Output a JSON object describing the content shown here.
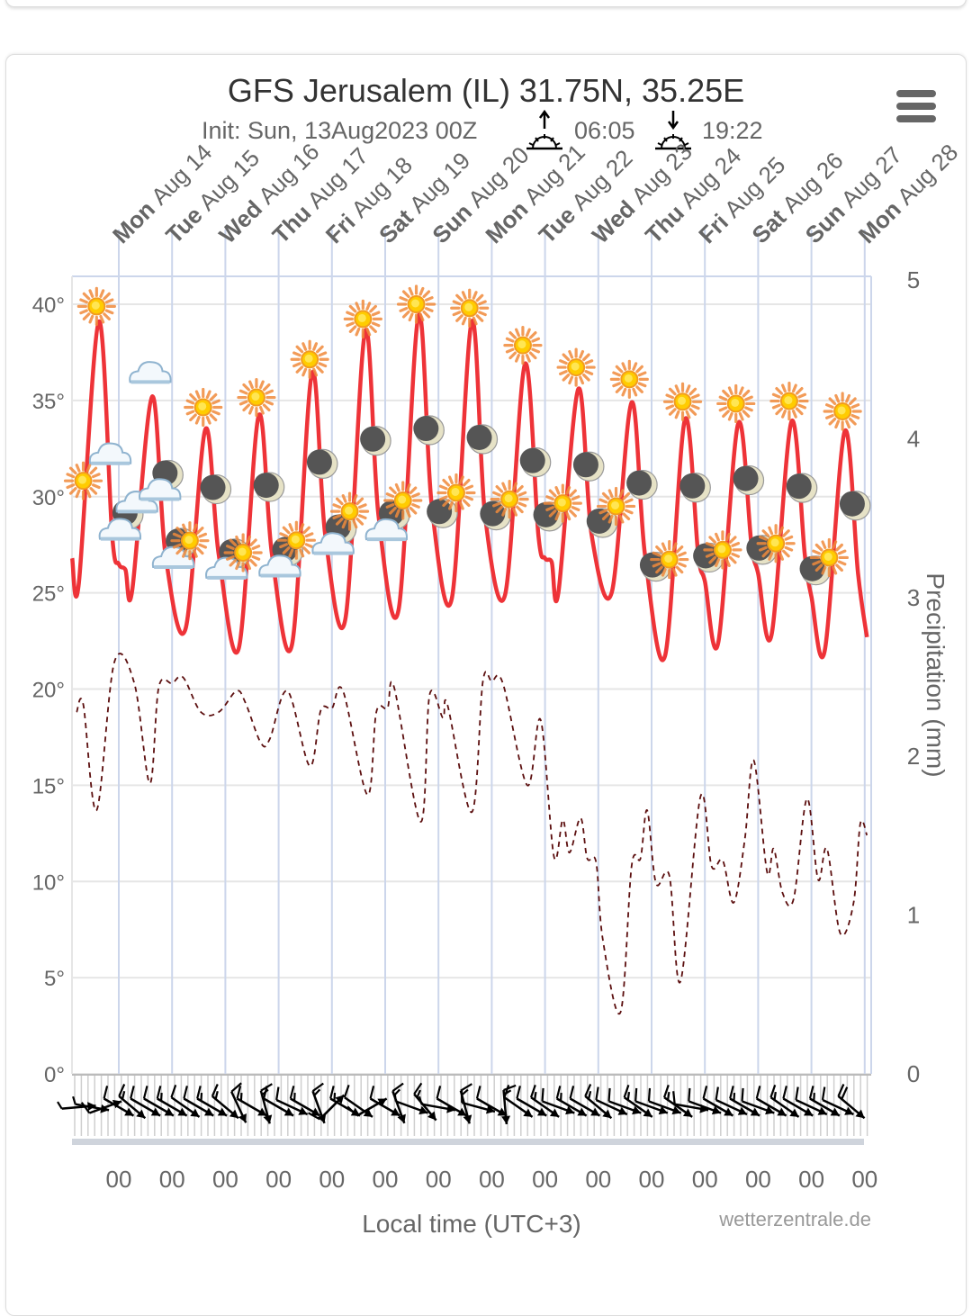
{
  "header": {
    "title": "GFS Jerusalem (IL) 31.75N, 35.25E",
    "init": "Init: Sun, 13Aug2023 00Z",
    "sunrise": "06:05",
    "sunset": "19:22",
    "sunrise_icon": "sunrise-icon",
    "sunset_icon": "sunset-icon",
    "menu_icon": "hamburger-menu-icon"
  },
  "chart_data": {
    "type": "line",
    "title": "GFS Jerusalem (IL) 31.75N, 35.25E",
    "subtitle": "Init: Sun, 13Aug2023 00Z",
    "x_axis": {
      "label": "Local time (UTC+3)",
      "range": [
        "2023-08-13 03:00",
        "2023-08-28 03:00"
      ],
      "tick_times": [
        "2023-08-14 00:00",
        "2023-08-15 00:00",
        "2023-08-16 00:00",
        "2023-08-17 00:00",
        "2023-08-18 00:00",
        "2023-08-19 00:00",
        "2023-08-20 00:00",
        "2023-08-21 00:00",
        "2023-08-22 00:00",
        "2023-08-23 00:00",
        "2023-08-24 00:00",
        "2023-08-25 00:00",
        "2023-08-26 00:00",
        "2023-08-27 00:00",
        "2023-08-28 00:00"
      ],
      "tick_labels": [
        "00",
        "00",
        "00",
        "00",
        "00",
        "00",
        "00",
        "00",
        "00",
        "00",
        "00",
        "00",
        "00",
        "00",
        "00"
      ],
      "day_labels": [
        {
          "day": "Mon",
          "date": "Aug 14"
        },
        {
          "day": "Tue",
          "date": "Aug 15"
        },
        {
          "day": "Wed",
          "date": "Aug 16"
        },
        {
          "day": "Thu",
          "date": "Aug 17"
        },
        {
          "day": "Fri",
          "date": "Aug 18"
        },
        {
          "day": "Sat",
          "date": "Aug 19"
        },
        {
          "day": "Sun",
          "date": "Aug 20"
        },
        {
          "day": "Mon",
          "date": "Aug 21"
        },
        {
          "day": "Tue",
          "date": "Aug 22"
        },
        {
          "day": "Wed",
          "date": "Aug 23"
        },
        {
          "day": "Thu",
          "date": "Aug 24"
        },
        {
          "day": "Fri",
          "date": "Aug 25"
        },
        {
          "day": "Sat",
          "date": "Aug 26"
        },
        {
          "day": "Sun",
          "date": "Aug 27"
        },
        {
          "day": "Mon",
          "date": "Aug 28"
        }
      ]
    },
    "y_axis_left": {
      "ticks": [
        0,
        5,
        10,
        15,
        20,
        25,
        30,
        35,
        40
      ],
      "unit": "°",
      "range": [
        0,
        41.45
      ],
      "grid": true
    },
    "y_axis_right": {
      "label": "Precipitation (mm)",
      "ticks": [
        0,
        1,
        2,
        3,
        4,
        5
      ],
      "range": [
        0,
        5
      ]
    },
    "colors": {
      "temperature": "#ee3338",
      "dewpoint": "#5c0f0f",
      "grid": "#e6e6e6",
      "day_lines": "#ccd6eb",
      "wind": "#000000"
    },
    "series": [
      {
        "style": "solid",
        "color": "#ee3338",
        "points": [
          [
            "2023-08-13 03:00",
            26.8
          ],
          [
            "2023-08-13 06:00",
            25.5
          ],
          [
            "2023-08-13 15:00",
            39.1
          ],
          [
            "2023-08-13 21:00",
            28.0
          ],
          [
            "2023-08-14 00:00",
            26.5
          ],
          [
            "2023-08-14 03:00",
            26.2
          ],
          [
            "2023-08-14 06:00",
            25.1
          ],
          [
            "2023-08-14 15:00",
            35.2
          ],
          [
            "2023-08-14 21:00",
            27.0
          ],
          [
            "2023-08-15 06:00",
            23.1
          ],
          [
            "2023-08-15 15:00",
            33.5
          ],
          [
            "2023-08-15 21:00",
            27.0
          ],
          [
            "2023-08-16 06:00",
            22.1
          ],
          [
            "2023-08-16 15:00",
            34.2
          ],
          [
            "2023-08-16 21:00",
            27.0
          ],
          [
            "2023-08-17 06:00",
            22.3
          ],
          [
            "2023-08-17 15:00",
            36.4
          ],
          [
            "2023-08-17 21:00",
            28.0
          ],
          [
            "2023-08-18 06:00",
            23.6
          ],
          [
            "2023-08-18 15:00",
            38.6
          ],
          [
            "2023-08-18 21:00",
            29.0
          ],
          [
            "2023-08-19 06:00",
            24.1
          ],
          [
            "2023-08-19 15:00",
            39.4
          ],
          [
            "2023-08-19 21:00",
            29.5
          ],
          [
            "2023-08-20 06:00",
            24.7
          ],
          [
            "2023-08-20 15:00",
            39.1
          ],
          [
            "2023-08-20 21:00",
            29.0
          ],
          [
            "2023-08-21 06:00",
            24.9
          ],
          [
            "2023-08-21 15:00",
            36.9
          ],
          [
            "2023-08-21 21:00",
            28.0
          ],
          [
            "2023-08-22 00:00",
            26.8
          ],
          [
            "2023-08-22 03:00",
            26.6
          ],
          [
            "2023-08-22 06:00",
            25.0
          ],
          [
            "2023-08-22 15:00",
            35.6
          ],
          [
            "2023-08-22 21:00",
            28.0
          ],
          [
            "2023-08-23 06:00",
            25.0
          ],
          [
            "2023-08-23 15:00",
            34.9
          ],
          [
            "2023-08-23 21:00",
            27.0
          ],
          [
            "2023-08-24 06:00",
            21.7
          ],
          [
            "2023-08-24 15:00",
            34.0
          ],
          [
            "2023-08-24 21:00",
            27.0
          ],
          [
            "2023-08-25 00:00",
            25.6
          ],
          [
            "2023-08-25 06:00",
            22.4
          ],
          [
            "2023-08-25 15:00",
            33.8
          ],
          [
            "2023-08-25 21:00",
            27.5
          ],
          [
            "2023-08-26 00:00",
            26.0
          ],
          [
            "2023-08-26 06:00",
            22.8
          ],
          [
            "2023-08-26 15:00",
            33.9
          ],
          [
            "2023-08-26 21:00",
            27.0
          ],
          [
            "2023-08-27 00:00",
            24.8
          ],
          [
            "2023-08-27 06:00",
            22.0
          ],
          [
            "2023-08-27 15:00",
            33.4
          ],
          [
            "2023-08-27 21:00",
            26.0
          ],
          [
            "2023-08-28 01:00",
            22.7
          ]
        ]
      },
      {
        "style": "dashed",
        "color": "#5c0f0f",
        "points": [
          [
            "2023-08-13 05:00",
            18.8
          ],
          [
            "2023-08-13 08:00",
            19.2
          ],
          [
            "2023-08-13 14:00",
            13.7
          ],
          [
            "2023-08-13 22:00",
            21.4
          ],
          [
            "2023-08-14 07:00",
            20.3
          ],
          [
            "2023-08-14 14:00",
            15.1
          ],
          [
            "2023-08-14 18:00",
            20.1
          ],
          [
            "2023-08-15 00:00",
            20.3
          ],
          [
            "2023-08-15 05:00",
            20.6
          ],
          [
            "2023-08-15 13:00",
            18.8
          ],
          [
            "2023-08-15 21:00",
            18.8
          ],
          [
            "2023-08-16 05:00",
            19.9
          ],
          [
            "2023-08-16 09:00",
            19.3
          ],
          [
            "2023-08-16 16:00",
            17.2
          ],
          [
            "2023-08-16 20:00",
            17.4
          ],
          [
            "2023-08-17 04:00",
            19.9
          ],
          [
            "2023-08-17 14:00",
            16.0
          ],
          [
            "2023-08-17 19:00",
            18.9
          ],
          [
            "2023-08-18 00:00",
            19.0
          ],
          [
            "2023-08-18 05:00",
            19.9
          ],
          [
            "2023-08-18 16:00",
            14.5
          ],
          [
            "2023-08-18 20:00",
            18.8
          ],
          [
            "2023-08-19 01:00",
            19.0
          ],
          [
            "2023-08-19 04:00",
            20.1
          ],
          [
            "2023-08-19 16:00",
            13.1
          ],
          [
            "2023-08-19 20:00",
            19.7
          ],
          [
            "2023-08-20 02:00",
            18.5
          ],
          [
            "2023-08-20 04:00",
            19.2
          ],
          [
            "2023-08-20 15:00",
            13.6
          ],
          [
            "2023-08-20 20:00",
            20.4
          ],
          [
            "2023-08-21 00:00",
            20.4
          ],
          [
            "2023-08-21 05:00",
            20.3
          ],
          [
            "2023-08-21 16:00",
            15.0
          ],
          [
            "2023-08-21 22:00",
            18.4
          ],
          [
            "2023-08-22 04:00",
            11.3
          ],
          [
            "2023-08-22 08:00",
            13.2
          ],
          [
            "2023-08-22 11:00",
            11.5
          ],
          [
            "2023-08-22 16:00",
            13.3
          ],
          [
            "2023-08-22 19:00",
            11.2
          ],
          [
            "2023-08-22 23:00",
            11.0
          ],
          [
            "2023-08-23 02:00",
            7.0
          ],
          [
            "2023-08-23 10:00",
            3.2
          ],
          [
            "2023-08-23 15:00",
            10.8
          ],
          [
            "2023-08-23 19:00",
            11.2
          ],
          [
            "2023-08-23 22:00",
            13.7
          ],
          [
            "2023-08-24 02:00",
            9.9
          ],
          [
            "2023-08-24 08:00",
            10.3
          ],
          [
            "2023-08-24 13:00",
            4.8
          ],
          [
            "2023-08-24 22:00",
            14.4
          ],
          [
            "2023-08-25 03:00",
            10.8
          ],
          [
            "2023-08-25 08:00",
            11.1
          ],
          [
            "2023-08-25 13:00",
            8.9
          ],
          [
            "2023-08-25 18:00",
            12.2
          ],
          [
            "2023-08-25 22:00",
            16.3
          ],
          [
            "2023-08-26 04:00",
            10.5
          ],
          [
            "2023-08-26 07:00",
            11.7
          ],
          [
            "2023-08-26 11:00",
            9.4
          ],
          [
            "2023-08-26 16:00",
            9.1
          ],
          [
            "2023-08-26 22:00",
            14.3
          ],
          [
            "2023-08-27 03:00",
            10.1
          ],
          [
            "2023-08-27 07:00",
            11.7
          ],
          [
            "2023-08-27 13:00",
            7.3
          ],
          [
            "2023-08-27 19:00",
            8.9
          ],
          [
            "2023-08-27 22:00",
            13.0
          ],
          [
            "2023-08-28 01:00",
            12.4
          ]
        ]
      }
    ],
    "precipitation": [],
    "weather_icons": [
      [
        "2023-08-13 08:00",
        "sun"
      ],
      [
        "2023-08-13 14:00",
        "sun"
      ],
      [
        "2023-08-13 20:00",
        "cloud"
      ],
      [
        "2023-08-14 02:00",
        "moon-cloud"
      ],
      [
        "2023-08-14 08:00",
        "cloud"
      ],
      [
        "2023-08-14 14:00",
        "cloud"
      ],
      [
        "2023-08-14 20:00",
        "moon-cloud"
      ],
      [
        "2023-08-15 02:00",
        "moon-cloud"
      ],
      [
        "2023-08-15 08:00",
        "sun"
      ],
      [
        "2023-08-15 14:00",
        "sun"
      ],
      [
        "2023-08-15 20:00",
        "moon"
      ],
      [
        "2023-08-16 02:00",
        "moon-cloud"
      ],
      [
        "2023-08-16 08:00",
        "sun"
      ],
      [
        "2023-08-16 14:00",
        "sun"
      ],
      [
        "2023-08-16 20:00",
        "moon"
      ],
      [
        "2023-08-17 02:00",
        "moon-cloud"
      ],
      [
        "2023-08-17 08:00",
        "sun"
      ],
      [
        "2023-08-17 14:00",
        "sun"
      ],
      [
        "2023-08-17 20:00",
        "moon"
      ],
      [
        "2023-08-18 02:00",
        "moon-cloud"
      ],
      [
        "2023-08-18 08:00",
        "sun"
      ],
      [
        "2023-08-18 14:00",
        "sun"
      ],
      [
        "2023-08-18 20:00",
        "moon"
      ],
      [
        "2023-08-19 02:00",
        "moon-cloud"
      ],
      [
        "2023-08-19 08:00",
        "sun"
      ],
      [
        "2023-08-19 14:00",
        "sun"
      ],
      [
        "2023-08-19 20:00",
        "moon"
      ],
      [
        "2023-08-20 02:00",
        "moon"
      ],
      [
        "2023-08-20 08:00",
        "sun"
      ],
      [
        "2023-08-20 14:00",
        "sun"
      ],
      [
        "2023-08-20 20:00",
        "moon"
      ],
      [
        "2023-08-21 02:00",
        "moon"
      ],
      [
        "2023-08-21 08:00",
        "sun"
      ],
      [
        "2023-08-21 14:00",
        "sun"
      ],
      [
        "2023-08-21 20:00",
        "moon"
      ],
      [
        "2023-08-22 02:00",
        "moon"
      ],
      [
        "2023-08-22 08:00",
        "sun"
      ],
      [
        "2023-08-22 14:00",
        "sun"
      ],
      [
        "2023-08-22 20:00",
        "moon"
      ],
      [
        "2023-08-23 02:00",
        "moon"
      ],
      [
        "2023-08-23 08:00",
        "sun"
      ],
      [
        "2023-08-23 14:00",
        "sun"
      ],
      [
        "2023-08-23 20:00",
        "moon"
      ],
      [
        "2023-08-24 02:00",
        "moon"
      ],
      [
        "2023-08-24 08:00",
        "sun"
      ],
      [
        "2023-08-24 14:00",
        "sun"
      ],
      [
        "2023-08-24 20:00",
        "moon"
      ],
      [
        "2023-08-25 02:00",
        "moon"
      ],
      [
        "2023-08-25 08:00",
        "sun"
      ],
      [
        "2023-08-25 14:00",
        "sun"
      ],
      [
        "2023-08-25 20:00",
        "moon"
      ],
      [
        "2023-08-26 02:00",
        "moon"
      ],
      [
        "2023-08-26 08:00",
        "sun"
      ],
      [
        "2023-08-26 14:00",
        "sun"
      ],
      [
        "2023-08-26 20:00",
        "moon"
      ],
      [
        "2023-08-27 02:00",
        "moon"
      ],
      [
        "2023-08-27 08:00",
        "sun"
      ],
      [
        "2023-08-27 14:00",
        "sun"
      ],
      [
        "2023-08-27 20:00",
        "moon"
      ]
    ],
    "wind": [
      [
        "2023-08-13 06:00",
        265,
        5
      ],
      [
        "2023-08-13 12:00",
        280,
        5
      ],
      [
        "2023-08-13 18:00",
        250,
        10
      ],
      [
        "2023-08-14 00:00",
        300,
        10
      ],
      [
        "2023-08-14 06:00",
        310,
        15
      ],
      [
        "2023-08-14 12:00",
        300,
        10
      ],
      [
        "2023-08-14 18:00",
        300,
        10
      ],
      [
        "2023-08-15 00:00",
        300,
        15
      ],
      [
        "2023-08-15 06:00",
        305,
        10
      ],
      [
        "2023-08-15 12:00",
        300,
        10
      ],
      [
        "2023-08-15 18:00",
        300,
        15
      ],
      [
        "2023-08-16 00:00",
        310,
        15
      ],
      [
        "2023-08-16 06:00",
        335,
        10
      ],
      [
        "2023-08-16 12:00",
        300,
        15
      ],
      [
        "2023-08-16 18:00",
        345,
        15
      ],
      [
        "2023-08-17 00:00",
        300,
        10
      ],
      [
        "2023-08-17 06:00",
        295,
        10
      ],
      [
        "2023-08-17 12:00",
        300,
        15
      ],
      [
        "2023-08-17 18:00",
        340,
        15
      ],
      [
        "2023-08-18 00:00",
        225,
        10
      ],
      [
        "2023-08-18 06:00",
        300,
        15
      ],
      [
        "2023-08-18 12:00",
        305,
        10
      ],
      [
        "2023-08-18 18:00",
        240,
        10
      ],
      [
        "2023-08-19 00:00",
        300,
        10
      ],
      [
        "2023-08-19 06:00",
        340,
        15
      ],
      [
        "2023-08-19 12:00",
        290,
        5
      ],
      [
        "2023-08-19 18:00",
        320,
        15
      ],
      [
        "2023-08-20 00:00",
        280,
        5
      ],
      [
        "2023-08-20 06:00",
        300,
        10
      ],
      [
        "2023-08-20 12:00",
        345,
        15
      ],
      [
        "2023-08-20 18:00",
        285,
        10
      ],
      [
        "2023-08-21 00:00",
        300,
        10
      ],
      [
        "2023-08-21 06:00",
        355,
        15
      ],
      [
        "2023-08-21 12:00",
        305,
        10
      ],
      [
        "2023-08-21 18:00",
        300,
        10
      ],
      [
        "2023-08-22 00:00",
        305,
        15
      ],
      [
        "2023-08-22 06:00",
        290,
        10
      ],
      [
        "2023-08-22 12:00",
        300,
        15
      ],
      [
        "2023-08-22 18:00",
        300,
        10
      ],
      [
        "2023-08-23 00:00",
        310,
        15
      ],
      [
        "2023-08-23 06:00",
        295,
        10
      ],
      [
        "2023-08-23 12:00",
        290,
        10
      ],
      [
        "2023-08-23 18:00",
        305,
        15
      ],
      [
        "2023-08-24 00:00",
        290,
        10
      ],
      [
        "2023-08-24 06:00",
        290,
        10
      ],
      [
        "2023-08-24 12:00",
        305,
        15
      ],
      [
        "2023-08-24 18:00",
        280,
        10
      ],
      [
        "2023-08-25 00:00",
        290,
        10
      ],
      [
        "2023-08-25 06:00",
        300,
        10
      ],
      [
        "2023-08-25 12:00",
        295,
        10
      ],
      [
        "2023-08-25 18:00",
        300,
        15
      ],
      [
        "2023-08-26 00:00",
        290,
        10
      ],
      [
        "2023-08-26 06:00",
        300,
        10
      ],
      [
        "2023-08-26 12:00",
        305,
        15
      ],
      [
        "2023-08-26 18:00",
        300,
        10
      ],
      [
        "2023-08-27 00:00",
        295,
        10
      ],
      [
        "2023-08-27 06:00",
        300,
        15
      ],
      [
        "2023-08-27 12:00",
        295,
        10
      ],
      [
        "2023-08-27 18:00",
        310,
        20
      ]
    ],
    "credit": "wetterzentrale.de"
  }
}
